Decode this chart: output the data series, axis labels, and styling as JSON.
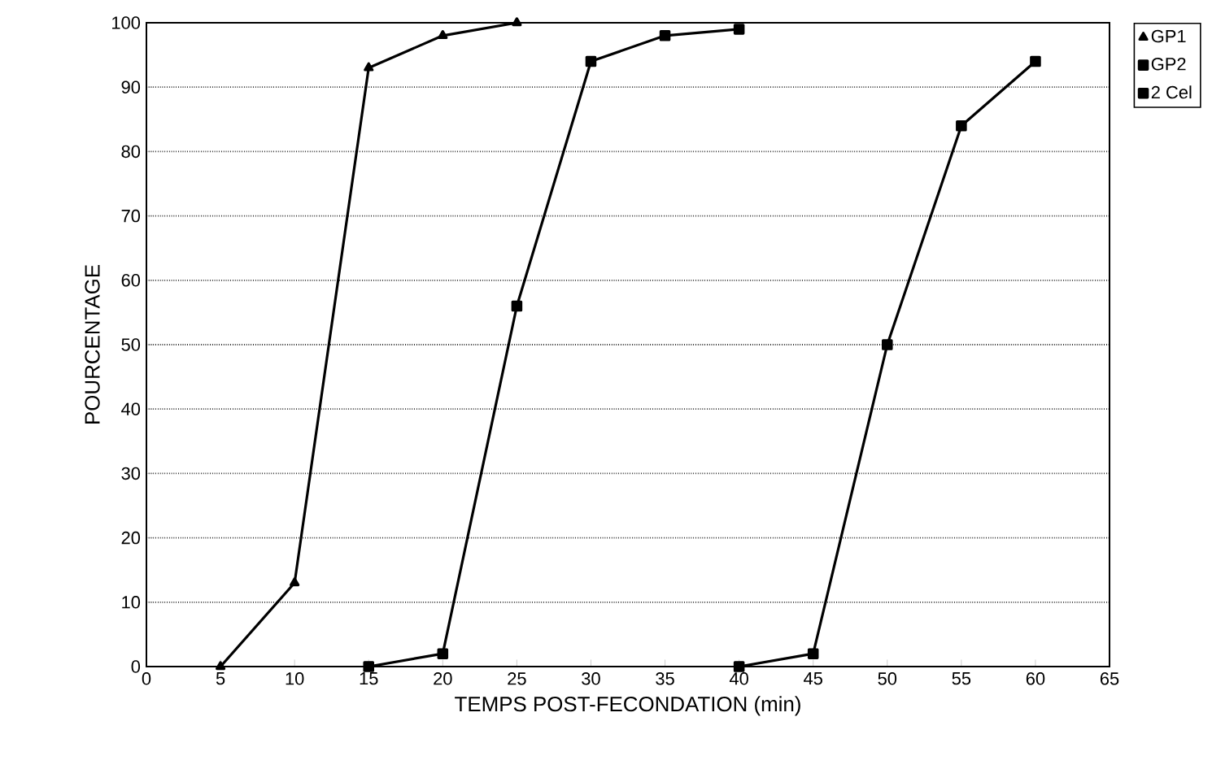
{
  "chart_data": {
    "type": "line",
    "xlabel": "TEMPS POST-FECONDATION (min)",
    "ylabel": "POURCENTAGE",
    "xlim": [
      0,
      65
    ],
    "xticks": [
      0,
      5,
      10,
      15,
      20,
      25,
      30,
      35,
      40,
      45,
      50,
      55,
      60,
      65
    ],
    "ylim": [
      0,
      100
    ],
    "yticks": [
      0,
      10,
      20,
      30,
      40,
      50,
      60,
      70,
      80,
      90,
      100
    ],
    "grid": "y",
    "legend": "right",
    "line_style": "solid",
    "series": [
      {
        "name": "GP1",
        "color": "#000000",
        "marker": "triangle",
        "x": [
          5,
          10,
          15,
          20,
          25
        ],
        "values": [
          0,
          13,
          93,
          98,
          100
        ]
      },
      {
        "name": "GP2",
        "color": "#000000",
        "marker": "square",
        "x": [
          15,
          20,
          25,
          30,
          35,
          40
        ],
        "values": [
          0,
          2,
          56,
          94,
          98,
          99
        ]
      },
      {
        "name": "2 Cel",
        "color": "#000000",
        "marker": "square",
        "x": [
          40,
          45,
          50,
          55,
          60
        ],
        "values": [
          0,
          2,
          50,
          84,
          94
        ]
      }
    ]
  }
}
